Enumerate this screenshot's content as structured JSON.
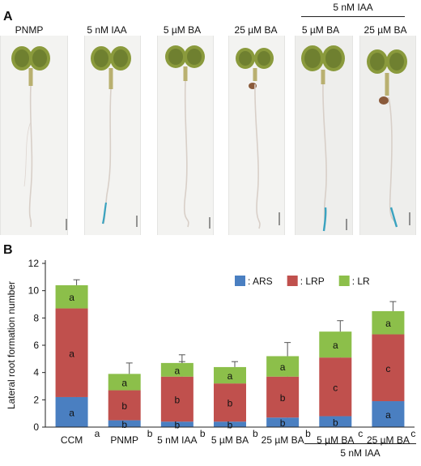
{
  "panel_a": {
    "letter": "A",
    "group_label": "5 nM IAA",
    "treatments": [
      "PNMP",
      "5 nM IAA",
      "5 µM BA",
      "25 µM BA",
      "5 µM BA",
      "25 µM BA"
    ]
  },
  "panel_b": {
    "letter": "B",
    "group_label": "5 nM IAA"
  },
  "chart_data": {
    "type": "bar",
    "stacked": true,
    "ylabel": "Lateral root formation  number",
    "xlabel": "",
    "ylim": [
      0,
      12
    ],
    "yticks": [
      0,
      2,
      4,
      6,
      8,
      10,
      12
    ],
    "categories": [
      "CCM",
      "PNMP",
      "5 nM IAA",
      "5 µM BA",
      "25 µM BA",
      "5 µM BA",
      "25 µM BA"
    ],
    "category_letters": [
      "a",
      "b",
      "b",
      "b",
      "b",
      "c",
      "c"
    ],
    "legend_position": "top-right",
    "series": [
      {
        "name": ": ARS",
        "color": "#4a7fc1",
        "values": [
          2.2,
          0.5,
          0.4,
          0.4,
          0.7,
          0.8,
          1.9
        ],
        "errors": [
          1.4,
          0.7,
          0.4,
          0.4,
          0.8,
          0.8,
          0.8
        ],
        "letters": [
          "a",
          "b",
          "b",
          "b",
          "b",
          "b",
          "a"
        ]
      },
      {
        "name": ": LRP",
        "color": "#c0504d",
        "values": [
          6.5,
          2.2,
          3.3,
          2.8,
          3.0,
          4.3,
          4.9
        ],
        "errors": [
          1.6,
          0.9,
          1.1,
          1.1,
          1.0,
          1.1,
          0.9
        ],
        "letters": [
          "a",
          "b",
          "b",
          "b",
          "b",
          "c",
          "c"
        ]
      },
      {
        "name": ": LR",
        "color": "#8cbf4a",
        "values": [
          1.7,
          1.2,
          1.0,
          1.2,
          1.5,
          1.9,
          1.7
        ],
        "errors": [
          0.4,
          0.8,
          0.6,
          0.4,
          1.0,
          0.8,
          0.7
        ],
        "letters": [
          "a",
          "a",
          "a",
          "a",
          "a",
          "a",
          "a"
        ]
      }
    ]
  }
}
